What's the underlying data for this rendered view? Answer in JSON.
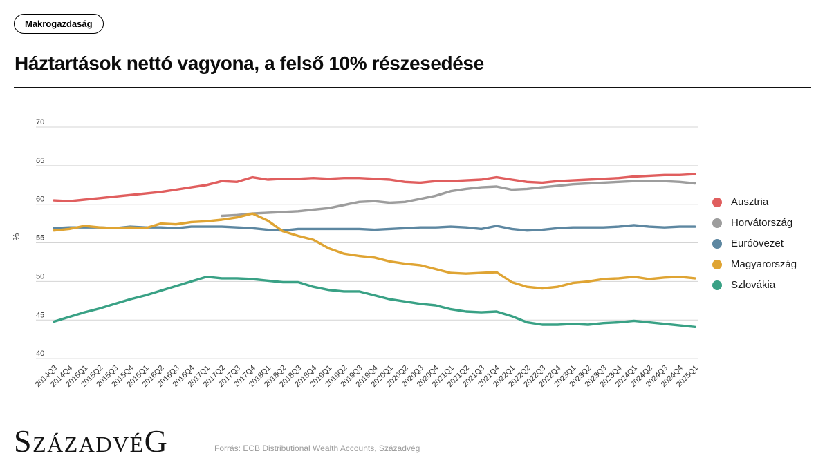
{
  "tag": {
    "label": "Makrogazdaság"
  },
  "title": "Háztartások nettó vagyona, a felső 10% részesedése",
  "footer": {
    "logo": {
      "first": "S",
      "middle": "ZÁZADVÉ",
      "last": "G"
    },
    "source": "Forrás: ECB Distributional Wealth Accounts, Századvég"
  },
  "chart_data": {
    "type": "line",
    "title": "Háztartások nettó vagyona, a felső 10% részesedése",
    "xlabel": "",
    "ylabel": "%",
    "ylim": [
      40,
      70
    ],
    "yticks": [
      70,
      65,
      60,
      55,
      50,
      45,
      40
    ],
    "grid": true,
    "legend_position": "right",
    "categories": [
      "2014Q3",
      "2014Q4",
      "2015Q1",
      "2015Q2",
      "2015Q3",
      "2015Q4",
      "2016Q1",
      "2016Q2",
      "2016Q3",
      "2016Q4",
      "2017Q1",
      "2017Q2",
      "2017Q3",
      "2017Q4",
      "2018Q1",
      "2018Q2",
      "2018Q3",
      "2018Q4",
      "2019Q1",
      "2019Q2",
      "2019Q3",
      "2019Q4",
      "2020Q1",
      "2020Q2",
      "2020Q3",
      "2020Q4",
      "2021Q1",
      "2021Q2",
      "2021Q3",
      "2021Q4",
      "2022Q1",
      "2022Q2",
      "2022Q3",
      "2022Q4",
      "2023Q1",
      "2023Q2",
      "2023Q3",
      "2023Q4",
      "2024Q1",
      "2024Q2",
      "2024Q3",
      "2024Q4",
      "2025Q1"
    ],
    "series": [
      {
        "name": "Ausztria",
        "color": "#e05e5e",
        "start_index": 0,
        "values": [
          60.5,
          60.4,
          60.6,
          60.8,
          61.0,
          61.2,
          61.4,
          61.6,
          61.9,
          62.2,
          62.5,
          63.0,
          62.9,
          63.5,
          63.2,
          63.3,
          63.3,
          63.4,
          63.3,
          63.4,
          63.4,
          63.3,
          63.2,
          62.9,
          62.8,
          63.0,
          63.0,
          63.1,
          63.2,
          63.5,
          63.2,
          62.9,
          62.8,
          63.0,
          63.1,
          63.2,
          63.3,
          63.4,
          63.6,
          63.7,
          63.8,
          63.8,
          63.9
        ]
      },
      {
        "name": "Horvátország",
        "color": "#9d9d9d",
        "start_index": 11,
        "values": [
          58.5,
          58.6,
          58.8,
          58.9,
          59.0,
          59.1,
          59.3,
          59.5,
          59.9,
          60.3,
          60.4,
          60.2,
          60.3,
          60.7,
          61.1,
          61.7,
          62.0,
          62.2,
          62.3,
          61.9,
          62.0,
          62.2,
          62.4,
          62.6,
          62.7,
          62.8,
          62.9,
          63.0,
          63.0,
          63.0,
          62.9,
          62.7
        ]
      },
      {
        "name": "Euróövezet",
        "color": "#5d87a1",
        "start_index": 0,
        "values": [
          56.9,
          57.0,
          57.0,
          57.0,
          56.9,
          57.1,
          57.0,
          57.0,
          56.9,
          57.1,
          57.1,
          57.1,
          57.0,
          56.9,
          56.7,
          56.6,
          56.8,
          56.8,
          56.8,
          56.8,
          56.8,
          56.7,
          56.8,
          56.9,
          57.0,
          57.0,
          57.1,
          57.0,
          56.8,
          57.2,
          56.8,
          56.6,
          56.7,
          56.9,
          57.0,
          57.0,
          57.0,
          57.1,
          57.3,
          57.1,
          57.0,
          57.1,
          57.1
        ]
      },
      {
        "name": "Magyarország",
        "color": "#dfa433",
        "start_index": 0,
        "values": [
          56.6,
          56.8,
          57.2,
          57.0,
          56.9,
          57.0,
          56.9,
          57.5,
          57.4,
          57.7,
          57.8,
          58.0,
          58.3,
          58.8,
          57.9,
          56.5,
          55.9,
          55.4,
          54.3,
          53.6,
          53.3,
          53.1,
          52.6,
          52.3,
          52.1,
          51.6,
          51.1,
          51.0,
          51.1,
          51.2,
          49.9,
          49.3,
          49.1,
          49.3,
          49.8,
          50.0,
          50.3,
          50.4,
          50.6,
          50.3,
          50.5,
          50.6,
          50.4
        ]
      },
      {
        "name": "Szlovákia",
        "color": "#39a185",
        "start_index": 0,
        "values": [
          44.8,
          45.4,
          46.0,
          46.5,
          47.1,
          47.7,
          48.2,
          48.8,
          49.4,
          50.0,
          50.6,
          50.4,
          50.4,
          50.3,
          50.1,
          49.9,
          49.9,
          49.3,
          48.9,
          48.7,
          48.7,
          48.2,
          47.7,
          47.4,
          47.1,
          46.9,
          46.4,
          46.1,
          46.0,
          46.1,
          45.5,
          44.7,
          44.4,
          44.4,
          44.5,
          44.4,
          44.6,
          44.7,
          44.9,
          44.7,
          44.5,
          44.3,
          44.1
        ]
      }
    ]
  },
  "colors": {
    "grid": "#d4d4d4",
    "axis_text": "#333333",
    "divider": "#111111"
  }
}
